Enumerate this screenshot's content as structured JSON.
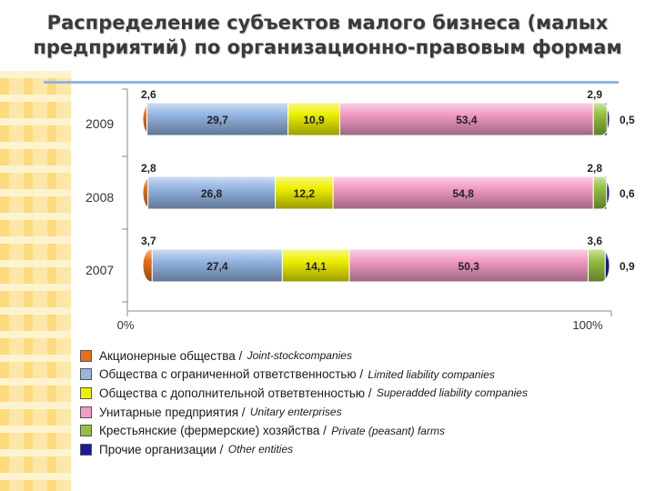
{
  "title": {
    "line1": "Распределение субъектов малого бизнеса (малых",
    "line2": "предприятий) по организационно-правовым формам"
  },
  "chart_data": {
    "type": "bar",
    "stacked": true,
    "orientation": "horizontal",
    "categories": [
      "2009",
      "2008",
      "2007"
    ],
    "series": [
      {
        "name": "Акционерные общества / Joint-stockcompanies",
        "color": "#e96d1a",
        "values": [
          2.6,
          2.8,
          3.7
        ],
        "labels": [
          "2,6",
          "2,8",
          "3,7"
        ]
      },
      {
        "name": "Общества с ограниченной ответственностью / Limited liability companies",
        "color": "#95b6e3",
        "values": [
          29.7,
          26.8,
          27.4
        ],
        "labels": [
          "29,7",
          "26,8",
          "27,4"
        ]
      },
      {
        "name": "Общества с дополнительной ответвтенностью / Superadded liability companies",
        "color": "#eef000",
        "values": [
          10.9,
          12.2,
          14.1
        ],
        "labels": [
          "10,9",
          "12,2",
          "14,1"
        ]
      },
      {
        "name": "Унитарные предприятия / Unitary enterprises",
        "color": "#f39bc5",
        "values": [
          53.4,
          54.8,
          50.3
        ],
        "labels": [
          "53,4",
          "54,8",
          "50,3"
        ]
      },
      {
        "name": "Крестьянские (фермерские) хозяйства / Private (peasant) farms",
        "color": "#93c13e",
        "values": [
          2.9,
          2.8,
          3.6
        ],
        "labels": [
          "2,9",
          "2,8",
          "3,6"
        ]
      },
      {
        "name": "Прочие организации / Other entities",
        "color": "#1a1a9c",
        "values": [
          0.5,
          0.6,
          0.9
        ],
        "labels": [
          "0,5",
          "0,6",
          "0,9"
        ]
      }
    ],
    "xlim": [
      0,
      100
    ],
    "xticks": [
      "0%",
      "100%"
    ],
    "legend_position": "bottom"
  },
  "legend": [
    {
      "ru": "Акционерные общества /",
      "en": "Joint-stockcompanies",
      "color": "#e96d1a"
    },
    {
      "ru": "Общества с ограниченной ответственностью /",
      "en": "Limited liability companies",
      "color": "#95b6e3"
    },
    {
      "ru": "Общества с дополнительной ответвтенностью /",
      "en": "Superadded liability companies",
      "color": "#eef000"
    },
    {
      "ru": "Унитарные предприятия /",
      "en": "Unitary enterprises",
      "color": "#f39bc5"
    },
    {
      "ru": "Крестьянские (фермерские) хозяйства /",
      "en": "Private (peasant) farms",
      "color": "#93c13e"
    },
    {
      "ru": "Прочие организации /",
      "en": "Other entities",
      "color": "#1a1a9c"
    }
  ]
}
